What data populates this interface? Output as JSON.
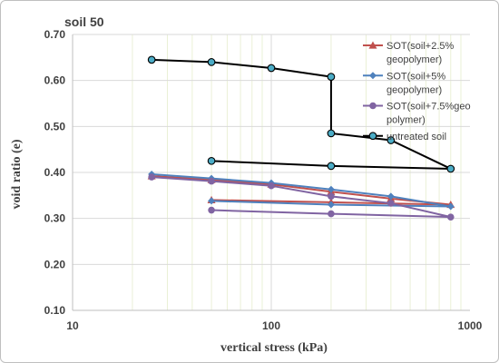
{
  "chart_data": {
    "type": "line",
    "title": "soil 50",
    "xlabel": "vertical stress (kPa)",
    "ylabel": "void ratio (e)",
    "x_scale": "log",
    "xlim": [
      10,
      1000
    ],
    "ylim": [
      0.1,
      0.7
    ],
    "x_ticks": [
      "10",
      "100",
      "1000"
    ],
    "y_ticks": [
      "0.10",
      "0.20",
      "0.30",
      "0.40",
      "0.50",
      "0.60",
      "0.70"
    ],
    "grid": "vertical minor and major lines",
    "legend_position": "top-right",
    "series": [
      {
        "name": "SOT(soil+2.5% geopolymer)",
        "color": "#c0504d",
        "marker": "triangle",
        "x": [
          25,
          50,
          100,
          200,
          400,
          800,
          200,
          50
        ],
        "y": [
          0.392,
          0.384,
          0.374,
          0.358,
          0.343,
          0.33,
          0.335,
          0.34
        ]
      },
      {
        "name": "SOT(soil+5% geopolymer)",
        "color": "#4f81bd",
        "marker": "diamond",
        "x": [
          25,
          50,
          100,
          200,
          400,
          800,
          200,
          50
        ],
        "y": [
          0.396,
          0.387,
          0.377,
          0.363,
          0.348,
          0.326,
          0.33,
          0.338
        ]
      },
      {
        "name": "SOT(soil+7.5%geo polymer)",
        "color": "#8064a2",
        "marker": "circle",
        "x": [
          25,
          50,
          100,
          200,
          400,
          800,
          200,
          50
        ],
        "y": [
          0.39,
          0.381,
          0.371,
          0.348,
          0.333,
          0.303,
          0.31,
          0.318
        ]
      },
      {
        "name": "untreated soil",
        "color": "#4bacc6",
        "line_color": "#000000",
        "marker": "circle",
        "x": [
          25,
          50,
          100,
          200,
          200,
          400,
          800,
          200,
          50
        ],
        "y": [
          0.645,
          0.64,
          0.627,
          0.608,
          0.485,
          0.47,
          0.408,
          0.414,
          0.425
        ]
      }
    ],
    "legend": {
      "entries": [
        [
          "SOT(soil+2.5%",
          "geopolymer)"
        ],
        [
          "SOT(soil+5%",
          "geopolymer)"
        ],
        [
          "SOT(soil+7.5%geo",
          "polymer)"
        ],
        [
          "untreated soil"
        ]
      ]
    }
  }
}
